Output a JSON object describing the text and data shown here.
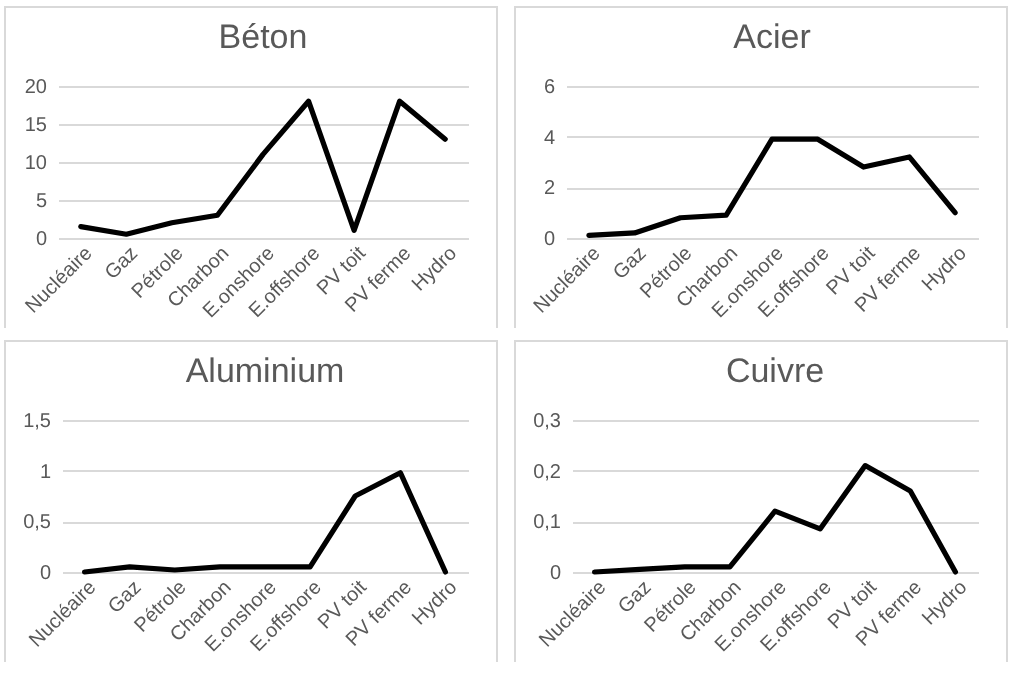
{
  "chart_data": [
    {
      "type": "line",
      "title": "Béton",
      "categories": [
        "Nucléaire",
        "Gaz",
        "Pétrole",
        "Charbon",
        "E.onshore",
        "E.offshore",
        "PV toit",
        "PV ferme",
        "Hydro"
      ],
      "values": [
        1.5,
        0.5,
        2,
        3,
        11,
        18,
        1,
        18,
        13
      ],
      "color": "#000000",
      "ylim": [
        0,
        20
      ],
      "yticks": [
        0,
        5,
        10,
        15,
        20
      ],
      "grid": "y"
    },
    {
      "type": "line",
      "title": "Acier",
      "categories": [
        "Nucléaire",
        "Gaz",
        "Pétrole",
        "Charbon",
        "E.onshore",
        "E.offshore",
        "PV toit",
        "PV ferme",
        "Hydro"
      ],
      "values": [
        0.1,
        0.2,
        0.8,
        0.9,
        3.9,
        3.9,
        2.8,
        3.2,
        1.0
      ],
      "color": "#000000",
      "ylim": [
        0,
        6
      ],
      "yticks": [
        0,
        2,
        4,
        6
      ],
      "grid": "y"
    },
    {
      "type": "line",
      "title": "Aluminium",
      "categories": [
        "Nucléaire",
        "Gaz",
        "Pétrole",
        "Charbon",
        "E.onshore",
        "E.offshore",
        "PV toit",
        "PV ferme",
        "Hydro"
      ],
      "values": [
        0,
        0.05,
        0.02,
        0.05,
        0.05,
        0.05,
        0.75,
        0.98,
        0
      ],
      "color": "#000000",
      "ylim": [
        0,
        1.5
      ],
      "yticks": [
        0,
        {
          "value": 0.5,
          "label": "0,5"
        },
        1,
        {
          "value": 1.5,
          "label": "1,5"
        }
      ],
      "grid": "y"
    },
    {
      "type": "line",
      "title": "Cuivre",
      "categories": [
        "Nucléaire",
        "Gaz",
        "Pétrole",
        "Charbon",
        "E.onshore",
        "E.offshore",
        "PV toit",
        "PV ferme",
        "Hydro"
      ],
      "values": [
        0,
        0.005,
        0.01,
        0.01,
        0.12,
        0.085,
        0.21,
        0.16,
        0
      ],
      "color": "#000000",
      "ylim": [
        0,
        0.3
      ],
      "yticks": [
        0,
        {
          "value": 0.1,
          "label": "0,1"
        },
        {
          "value": 0.2,
          "label": "0,2"
        },
        {
          "value": 0.3,
          "label": "0,3"
        }
      ],
      "grid": "y"
    }
  ]
}
